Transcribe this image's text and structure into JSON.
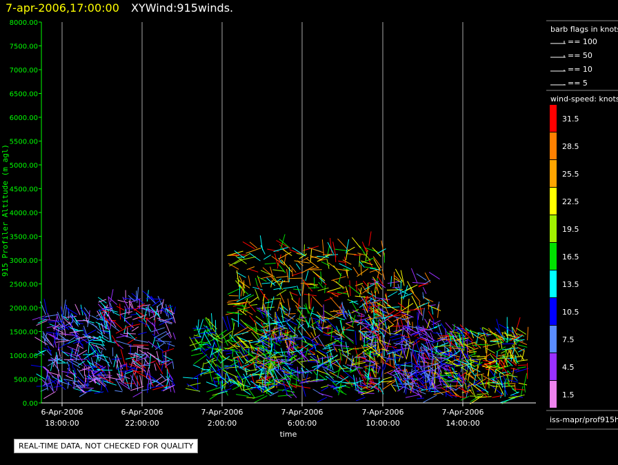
{
  "header": {
    "timestamp": "7-apr-2006,17:00:00",
    "product": "XYWind:915winds."
  },
  "chart_data": {
    "type": "scatter",
    "xlabel": "time",
    "ylabel": "915 Profiler Altitude (m agl)",
    "ylim": [
      0,
      8000
    ],
    "x_ticks": [
      {
        "date": "6-Apr-2006",
        "time": "18:00:00"
      },
      {
        "date": "6-Apr-2006",
        "time": "22:00:00"
      },
      {
        "date": "7-Apr-2006",
        "time": "2:00:00"
      },
      {
        "date": "7-Apr-2006",
        "time": "6:00:00"
      },
      {
        "date": "7-Apr-2006",
        "time": "10:00:00"
      },
      {
        "date": "7-Apr-2006",
        "time": "14:00:00"
      }
    ],
    "y_ticks": [
      "0.00",
      "500.00",
      "1000.00",
      "1500.00",
      "2000.00",
      "2500.00",
      "3000.00",
      "3500.00",
      "4000.00",
      "4500.00",
      "5000.00",
      "5500.00",
      "6000.00",
      "6500.00",
      "7000.00",
      "7500.00",
      "8000.00"
    ],
    "series": [],
    "grid": "vertical lines at x ticks"
  },
  "barb_legend": {
    "title": "barb flags in knots",
    "items": [
      "== 100",
      "== 50",
      "== 10",
      "== 5"
    ]
  },
  "speed_legend": {
    "title": "wind-speed: knots",
    "levels": [
      {
        "label": "31.5",
        "color": "#ff0000"
      },
      {
        "label": "28.5",
        "color": "#ff8000"
      },
      {
        "label": "25.5",
        "color": "#ffa500"
      },
      {
        "label": "22.5",
        "color": "#ffff00"
      },
      {
        "label": "19.5",
        "color": "#a0f000"
      },
      {
        "label": "16.5",
        "color": "#00e000"
      },
      {
        "label": "13.5",
        "color": "#00ffff"
      },
      {
        "label": "10.5",
        "color": "#0000ff"
      },
      {
        "label": "7.5",
        "color": "#5a8cff"
      },
      {
        "label": "4.5",
        "color": "#9a30ff"
      },
      {
        "label": "1.5",
        "color": "#ee82ee"
      }
    ]
  },
  "footer_path": "iss-mapr/prof915h",
  "warning": "REAL-TIME DATA, NOT CHECKED FOR QUALITY",
  "colors": {
    "axis": "#00ff00",
    "grid": "#aaaaaa",
    "header_timestamp": "#ffff00"
  }
}
